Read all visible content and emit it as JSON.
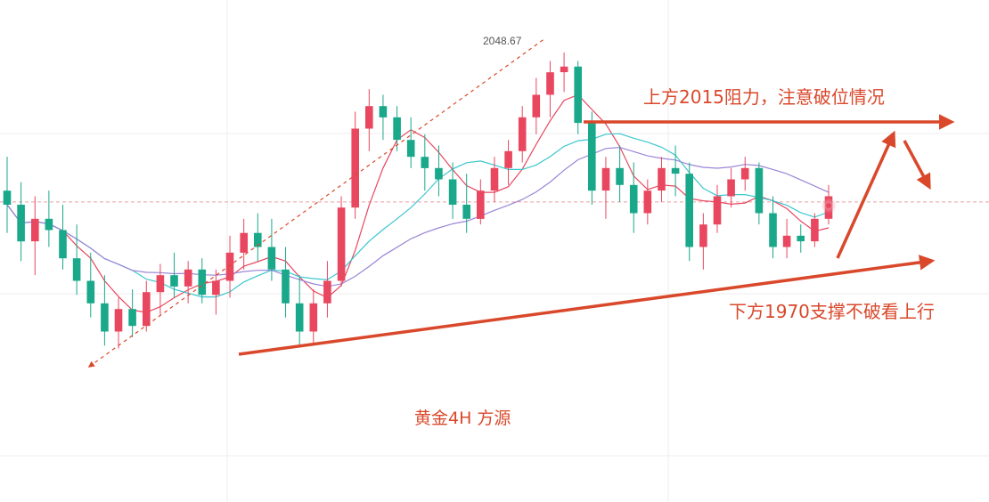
{
  "chart_data": {
    "type": "candlestick",
    "title": "黄金4H 方源",
    "instrument_timeframe": "黄金4H",
    "source": "方源",
    "price_high_label": "2048.67",
    "grid": true,
    "colors": {
      "up": "#e8475f",
      "down": "#1aa88a",
      "ma_fast": "#e8475f",
      "ma_mid": "#3cc6cf",
      "ma_slow": "#9b85d6",
      "annotation": "#d9482b",
      "grid": "#eeeeee",
      "price_line": "#e8a0a8"
    },
    "price_scale": {
      "top_price": 2055,
      "bottom_price": 1935
    },
    "current_price": 1996,
    "candles": [
      [
        2000,
        2012,
        1985,
        1995
      ],
      [
        1995,
        2003,
        1975,
        1982
      ],
      [
        1982,
        1998,
        1970,
        1990
      ],
      [
        1990,
        2000,
        1980,
        1986
      ],
      [
        1986,
        1995,
        1972,
        1976
      ],
      [
        1976,
        1988,
        1963,
        1968
      ],
      [
        1968,
        1978,
        1955,
        1960
      ],
      [
        1960,
        1970,
        1945,
        1950
      ],
      [
        1950,
        1962,
        1944,
        1958
      ],
      [
        1958,
        1965,
        1948,
        1952
      ],
      [
        1952,
        1968,
        1950,
        1964
      ],
      [
        1964,
        1974,
        1956,
        1970
      ],
      [
        1970,
        1978,
        1962,
        1966
      ],
      [
        1966,
        1975,
        1960,
        1972
      ],
      [
        1972,
        1976,
        1960,
        1963
      ],
      [
        1963,
        1972,
        1956,
        1968
      ],
      [
        1968,
        1984,
        1962,
        1978
      ],
      [
        1978,
        1990,
        1972,
        1985
      ],
      [
        1985,
        1992,
        1975,
        1980
      ],
      [
        1980,
        1990,
        1968,
        1972
      ],
      [
        1972,
        1980,
        1955,
        1960
      ],
      [
        1960,
        1970,
        1945,
        1950
      ],
      [
        1950,
        1965,
        1946,
        1960
      ],
      [
        1960,
        1975,
        1955,
        1968
      ],
      [
        1968,
        1998,
        1966,
        1994
      ],
      [
        1994,
        2028,
        1990,
        2022
      ],
      [
        2022,
        2036,
        2014,
        2030
      ],
      [
        2030,
        2034,
        2018,
        2026
      ],
      [
        2026,
        2030,
        2014,
        2018
      ],
      [
        2018,
        2026,
        2008,
        2012
      ],
      [
        2012,
        2020,
        2000,
        2008
      ],
      [
        2008,
        2016,
        1998,
        2004
      ],
      [
        2004,
        2010,
        1990,
        1995
      ],
      [
        1995,
        2006,
        1985,
        1990
      ],
      [
        1990,
        2004,
        1988,
        2000
      ],
      [
        2000,
        2012,
        1996,
        2008
      ],
      [
        2008,
        2018,
        2002,
        2014
      ],
      [
        2014,
        2030,
        2010,
        2026
      ],
      [
        2026,
        2040,
        2020,
        2034
      ],
      [
        2034,
        2046,
        2026,
        2042
      ],
      [
        2042,
        2049,
        2035,
        2044
      ],
      [
        2044,
        2046,
        2020,
        2024
      ],
      [
        2024,
        2028,
        1995,
        2000
      ],
      [
        2000,
        2012,
        1990,
        2008
      ],
      [
        2008,
        2016,
        1996,
        2002
      ],
      [
        2002,
        2010,
        1985,
        1992
      ],
      [
        1992,
        2004,
        1988,
        2000
      ],
      [
        2000,
        2012,
        1996,
        2008
      ],
      [
        2008,
        2016,
        1998,
        2006
      ],
      [
        2006,
        2010,
        1975,
        1980
      ],
      [
        1980,
        1992,
        1972,
        1988
      ],
      [
        1988,
        2002,
        1985,
        1998
      ],
      [
        1998,
        2008,
        1994,
        2004
      ],
      [
        2004,
        2012,
        2000,
        2008
      ],
      [
        2008,
        2010,
        1988,
        1992
      ],
      [
        1992,
        1998,
        1976,
        1980
      ],
      [
        1980,
        1990,
        1976,
        1984
      ],
      [
        1984,
        1988,
        1978,
        1982
      ],
      [
        1982,
        1992,
        1980,
        1990
      ],
      [
        1990,
        2002,
        1988,
        1998
      ]
    ]
  },
  "annotations": {
    "resistance_text": "上方2015阻力，注意破位情况",
    "support_text": "下方1970支撑不破看上行",
    "caption": "黄金4H 方源"
  }
}
